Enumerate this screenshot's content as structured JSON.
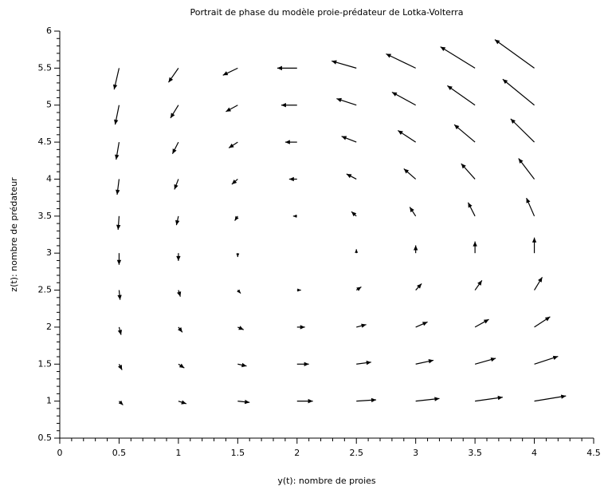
{
  "chart_data": {
    "type": "quiver",
    "title": "Portrait de phase du modèle proie-prédateur de Lotka-Volterra",
    "xlabel": "y(t): nombre de proies",
    "ylabel": "z(t): nombre de prédateur",
    "color": "#000000",
    "xlim": [
      0,
      4.5
    ],
    "xticks": [
      0,
      0.5,
      1,
      1.5,
      2,
      2.5,
      3,
      3.5,
      4,
      4.5
    ],
    "ylim": [
      0.5,
      6
    ],
    "yticks": [
      0.5,
      1,
      1.5,
      2,
      2.5,
      3,
      3.5,
      4,
      4.5,
      5,
      5.5,
      6
    ],
    "x": [
      0.5,
      0.5,
      0.5,
      0.5,
      0.5,
      0.5,
      0.5,
      0.5,
      0.5,
      0.5,
      1,
      1,
      1,
      1,
      1,
      1,
      1,
      1,
      1,
      1,
      1.5,
      1.5,
      1.5,
      1.5,
      1.5,
      1.5,
      1.5,
      1.5,
      1.5,
      1.5,
      2,
      2,
      2,
      2,
      2,
      2,
      2,
      2,
      2,
      2,
      2.5,
      2.5,
      2.5,
      2.5,
      2.5,
      2.5,
      2.5,
      2.5,
      2.5,
      2.5,
      3,
      3,
      3,
      3,
      3,
      3,
      3,
      3,
      3,
      3,
      3.5,
      3.5,
      3.5,
      3.5,
      3.5,
      3.5,
      3.5,
      3.5,
      3.5,
      3.5,
      4,
      4,
      4,
      4,
      4,
      4,
      4,
      4,
      4,
      4
    ],
    "y": [
      1,
      1.5,
      2,
      2.5,
      3,
      3.5,
      4,
      4.5,
      5,
      5.5,
      1,
      1.5,
      2,
      2.5,
      3,
      3.5,
      4,
      4.5,
      5,
      5.5,
      1,
      1.5,
      2,
      2.5,
      3,
      3.5,
      4,
      4.5,
      5,
      5.5,
      1,
      1.5,
      2,
      2.5,
      3,
      3.5,
      4,
      4.5,
      5,
      5.5,
      1,
      1.5,
      2,
      2.5,
      3,
      3.5,
      4,
      4.5,
      5,
      5.5,
      1,
      1.5,
      2,
      2.5,
      3,
      3.5,
      4,
      4.5,
      5,
      5.5,
      1,
      1.5,
      2,
      2.5,
      3,
      3.5,
      4,
      4.5,
      5,
      5.5,
      1,
      1.5,
      2,
      2.5,
      3,
      3.5,
      4,
      4.5,
      5,
      5.5
    ],
    "u": [
      0.0333,
      0.025,
      0.0167,
      0.0083,
      0,
      -0.0083,
      -0.0167,
      -0.025,
      -0.0333,
      -0.0417,
      0.0667,
      0.05,
      0.0333,
      0.0167,
      0,
      -0.0167,
      -0.0333,
      -0.05,
      -0.0667,
      -0.0833,
      0.1,
      0.075,
      0.05,
      0.025,
      0,
      -0.025,
      -0.05,
      -0.075,
      -0.1,
      -0.125,
      0.1333,
      0.1,
      0.0667,
      0.0333,
      0,
      -0.0333,
      -0.0667,
      -0.1,
      -0.1333,
      -0.1667,
      0.1667,
      0.125,
      0.0833,
      0.0417,
      0,
      -0.0417,
      -0.0833,
      -0.125,
      -0.1667,
      -0.2083,
      0.2,
      0.15,
      0.1,
      0.05,
      0,
      -0.05,
      -0.1,
      -0.15,
      -0.2,
      -0.25,
      0.2333,
      0.175,
      0.1167,
      0.0583,
      0,
      -0.0583,
      -0.1167,
      -0.175,
      -0.2333,
      -0.2917,
      0.2667,
      0.2,
      0.1333,
      0.0667,
      0,
      -0.0667,
      -0.1333,
      -0.2,
      -0.2667,
      -0.3333
    ],
    "v": [
      -0.0525,
      -0.0788,
      -0.105,
      -0.1313,
      -0.1575,
      -0.1838,
      -0.21,
      -0.2363,
      -0.2625,
      -0.2888,
      -0.035,
      -0.0525,
      -0.07,
      -0.0875,
      -0.105,
      -0.1225,
      -0.14,
      -0.1575,
      -0.175,
      -0.1925,
      -0.0175,
      -0.0263,
      -0.035,
      -0.0438,
      -0.0525,
      -0.0613,
      -0.07,
      -0.0788,
      -0.0875,
      -0.0963,
      0,
      0,
      0,
      0,
      0,
      0,
      0,
      0,
      0,
      0,
      0.0175,
      0.0263,
      0.035,
      0.0438,
      0.0525,
      0.0613,
      0.07,
      0.0788,
      0.0875,
      0.0963,
      0.035,
      0.0525,
      0.07,
      0.0875,
      0.105,
      0.1225,
      0.14,
      0.1575,
      0.175,
      0.1925,
      0.0525,
      0.0788,
      0.105,
      0.1313,
      0.1575,
      0.1838,
      0.21,
      0.2363,
      0.2625,
      0.2888,
      0.07,
      0.105,
      0.14,
      0.175,
      0.21,
      0.245,
      0.28,
      0.315,
      0.35,
      0.385
    ]
  }
}
